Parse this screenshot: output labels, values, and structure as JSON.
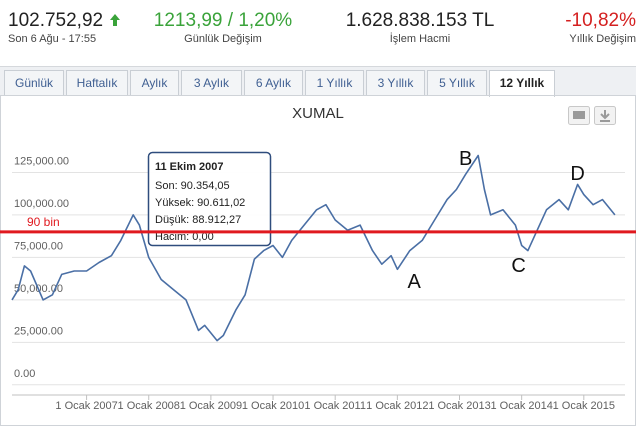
{
  "header": {
    "stats": [
      {
        "value": "102.752,92",
        "label": "Son 6 Ağu - 17:55",
        "color": "#222222"
      },
      {
        "value": "1213,99 / 1,20%",
        "label": "Günlük Değişim",
        "color": "#3aa33a"
      },
      {
        "value": "1.628.838.153 TL",
        "label": "İşlem Hacmi",
        "color": "#222222"
      },
      {
        "value": "-10,82%",
        "label": "Yıllık Değişim",
        "color": "#d42020"
      }
    ]
  },
  "tabs": [
    "Günlük",
    "Haftalık",
    "Aylık",
    "3 Aylık",
    "6 Aylık",
    "1 Yıllık",
    "3 Yıllık",
    "5 Yıllık",
    "12 Yıllık"
  ],
  "active_tab": 8,
  "tooltip": {
    "title": "11 Ekim 2007",
    "lines": [
      "Son: 90.354,05",
      "Yüksek: 90.611,02",
      "Düşük: 88.912,27",
      "Hacim: 0,00"
    ]
  },
  "chart_data": {
    "type": "line",
    "title": "XUMAL",
    "color": "#4a6fa5",
    "x": [
      2005.8,
      2005.9,
      2006.0,
      2006.1,
      2006.3,
      2006.45,
      2006.6,
      2006.8,
      2007.0,
      2007.2,
      2007.4,
      2007.55,
      2007.75,
      2007.85,
      2008.0,
      2008.2,
      2008.4,
      2008.6,
      2008.8,
      2008.9,
      2009.1,
      2009.2,
      2009.4,
      2009.55,
      2009.7,
      2009.85,
      2010.0,
      2010.15,
      2010.3,
      2010.5,
      2010.7,
      2010.85,
      2011.0,
      2011.2,
      2011.4,
      2011.6,
      2011.75,
      2011.9,
      2012.0,
      2012.2,
      2012.4,
      2012.6,
      2012.8,
      2012.95,
      2013.1,
      2013.3,
      2013.4,
      2013.5,
      2013.7,
      2013.9,
      2014.0,
      2014.1,
      2014.25,
      2014.4,
      2014.6,
      2014.75,
      2014.9,
      2015.0,
      2015.15,
      2015.3,
      2015.5
    ],
    "values": [
      50000,
      56000,
      70000,
      67000,
      50000,
      53000,
      65000,
      67000,
      67000,
      72000,
      76000,
      85000,
      100000,
      94000,
      75000,
      62000,
      56000,
      50000,
      32000,
      35000,
      26000,
      29000,
      44000,
      53000,
      74000,
      79000,
      82000,
      75000,
      85000,
      94000,
      103000,
      106000,
      97000,
      91000,
      94000,
      79000,
      71000,
      76000,
      68000,
      79000,
      85000,
      97000,
      109000,
      115000,
      124000,
      135000,
      115000,
      100000,
      103000,
      94000,
      82000,
      79000,
      91000,
      103000,
      109000,
      103000,
      118000,
      112000,
      106000,
      109000,
      100000
    ],
    "xlim": [
      2005.8,
      2015.55
    ],
    "ylim": [
      -6000,
      150000
    ],
    "xticks": [
      {
        "value": 2007,
        "label": "1 Ocak 2007"
      },
      {
        "value": 2008,
        "label": "1 Ocak 2008"
      },
      {
        "value": 2009,
        "label": "1 Ocak 2009"
      },
      {
        "value": 2010,
        "label": "1 Ocak 2010"
      },
      {
        "value": 2011,
        "label": "1 Ocak 2011"
      },
      {
        "value": 2012,
        "label": "1 Ocak 2012"
      },
      {
        "value": 2013,
        "label": "1 Ocak 2013"
      },
      {
        "value": 2014,
        "label": "1 Ocak 2014"
      },
      {
        "value": 2015,
        "label": "1 Ocak 2015"
      }
    ],
    "yticks": [
      {
        "value": 0,
        "label": "0.00"
      },
      {
        "value": 25000,
        "label": "25,000.00"
      },
      {
        "value": 50000,
        "label": "50,000.00"
      },
      {
        "value": 75000,
        "label": "75,000.00"
      },
      {
        "value": 100000,
        "label": "100,000.00"
      },
      {
        "value": 125000,
        "label": "125,000.00"
      }
    ],
    "grid": true,
    "reference_line": {
      "value": 90000,
      "label": "90 bin",
      "color": "#e0191f"
    },
    "annotations": [
      {
        "text": "A",
        "x": 2012.27,
        "y": 61000
      },
      {
        "text": "B",
        "x": 2013.1,
        "y": 133500
      },
      {
        "text": "C",
        "x": 2013.95,
        "y": 70600
      },
      {
        "text": "D",
        "x": 2014.9,
        "y": 124700
      }
    ]
  }
}
